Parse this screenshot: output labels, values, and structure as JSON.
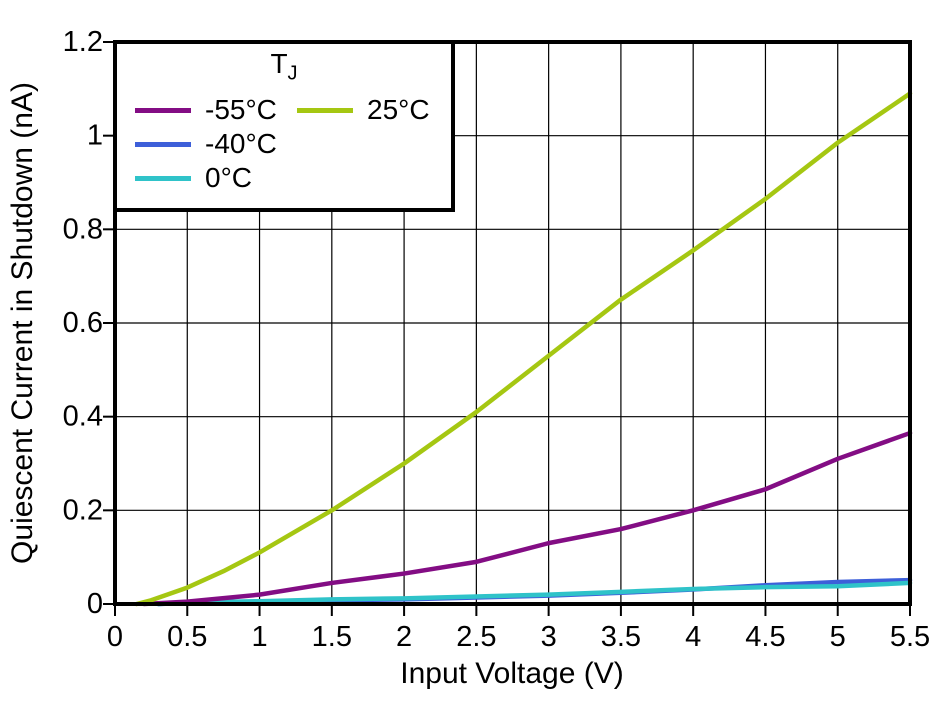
{
  "chart_data": {
    "type": "line",
    "title": "",
    "xlabel": "Input Voltage (V)",
    "ylabel": "Quiescent Current in Shutdown (nA)",
    "xlim": [
      0,
      5.5
    ],
    "ylim": [
      0,
      1.2
    ],
    "x_ticks": [
      0,
      0.5,
      1,
      1.5,
      2,
      2.5,
      3,
      3.5,
      4,
      4.5,
      5,
      5.5
    ],
    "x_tick_labels": [
      "0",
      "0.5",
      "1",
      "1.5",
      "2",
      "2.5",
      "3",
      "3.5",
      "4",
      "4.5",
      "5",
      "5.5"
    ],
    "y_ticks": [
      0,
      0.2,
      0.4,
      0.6,
      0.8,
      1,
      1.2
    ],
    "y_tick_labels": [
      "0",
      "0.2",
      "0.4",
      "0.6",
      "0.8",
      "1",
      "1.2"
    ],
    "grid": true,
    "frame_color": "#000000",
    "grid_color": "#000000",
    "legend": {
      "title": "T",
      "title_sub": "J",
      "position": "top-left"
    },
    "draw_order": [
      1,
      2,
      0,
      3
    ],
    "series": [
      {
        "name": "-55°C",
        "color": "#830d84",
        "points": [
          [
            0.2,
            0
          ],
          [
            0.5,
            0.005
          ],
          [
            1,
            0.02
          ],
          [
            1.5,
            0.045
          ],
          [
            2,
            0.065
          ],
          [
            2.5,
            0.09
          ],
          [
            3,
            0.13
          ],
          [
            3.5,
            0.16
          ],
          [
            4,
            0.2
          ],
          [
            4.5,
            0.245
          ],
          [
            5,
            0.31
          ],
          [
            5.5,
            0.365
          ]
        ]
      },
      {
        "name": "-40°C",
        "color": "#3d5fd9",
        "points": [
          [
            0.3,
            0
          ],
          [
            0.5,
            0.002
          ],
          [
            1,
            0.005
          ],
          [
            1.5,
            0.008
          ],
          [
            2,
            0.01
          ],
          [
            2.5,
            0.014
          ],
          [
            3,
            0.018
          ],
          [
            3.5,
            0.024
          ],
          [
            4,
            0.031
          ],
          [
            4.5,
            0.04
          ],
          [
            5,
            0.047
          ],
          [
            5.5,
            0.051
          ]
        ]
      },
      {
        "name": "0°C",
        "color": "#2fc3c9",
        "points": [
          [
            0.3,
            0
          ],
          [
            0.5,
            0.003
          ],
          [
            1,
            0.006
          ],
          [
            1.5,
            0.01
          ],
          [
            2,
            0.012
          ],
          [
            2.5,
            0.016
          ],
          [
            3,
            0.02
          ],
          [
            3.5,
            0.026
          ],
          [
            4,
            0.032
          ],
          [
            4.5,
            0.036
          ],
          [
            5,
            0.038
          ],
          [
            5.5,
            0.045
          ]
        ]
      },
      {
        "name": "25°C",
        "color": "#a5c712",
        "points": [
          [
            0.15,
            0
          ],
          [
            0.25,
            0.008
          ],
          [
            0.5,
            0.035
          ],
          [
            0.75,
            0.07
          ],
          [
            1,
            0.11
          ],
          [
            1.5,
            0.2
          ],
          [
            2,
            0.3
          ],
          [
            2.5,
            0.41
          ],
          [
            3,
            0.53
          ],
          [
            3.5,
            0.65
          ],
          [
            4,
            0.755
          ],
          [
            4.5,
            0.865
          ],
          [
            5,
            0.985
          ],
          [
            5.5,
            1.09
          ]
        ]
      }
    ]
  }
}
